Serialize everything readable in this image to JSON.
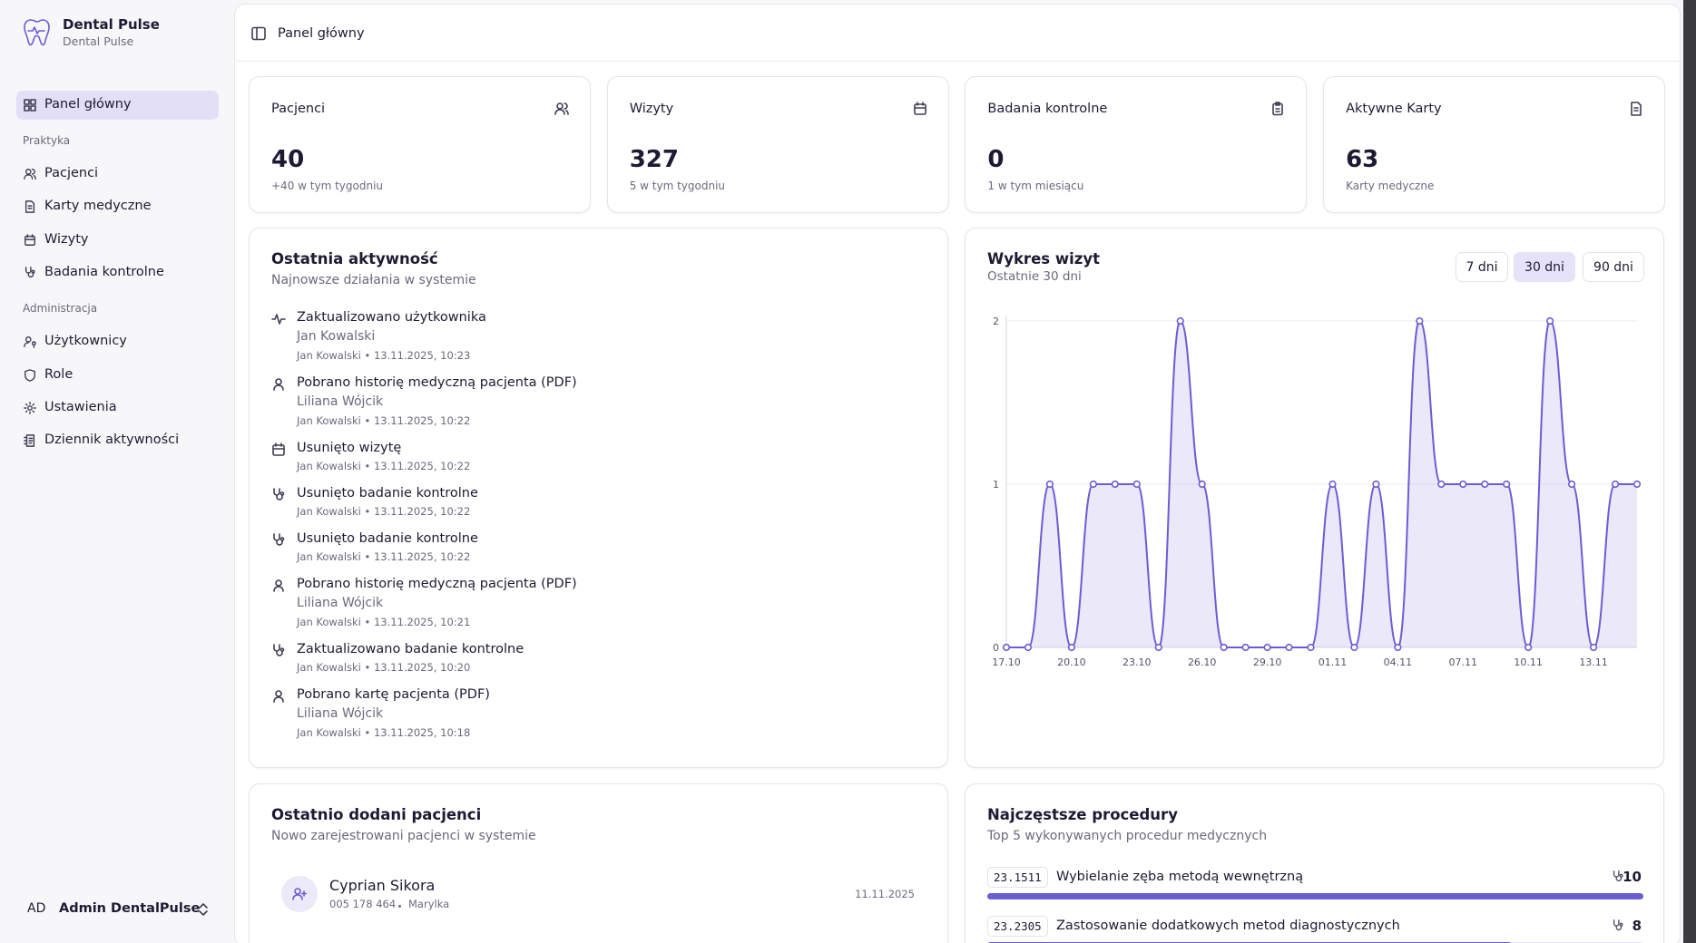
{
  "sidebar": {
    "brand": {
      "title": "Dental Pulse",
      "subtitle": "Dental Pulse"
    },
    "nav": [
      {
        "label": "Panel główny"
      }
    ],
    "sections": [
      {
        "title": "Praktyka",
        "items": [
          "Pacjenci",
          "Karty medyczne",
          "Wizyty",
          "Badania kontrolne"
        ]
      },
      {
        "title": "Administracja",
        "items": [
          "Użytkownicy",
          "Role",
          "Ustawienia",
          "Dziennik aktywności"
        ]
      }
    ],
    "user": {
      "initials": "AD",
      "name": "Admin DentalPulse"
    }
  },
  "header": {
    "breadcrumb": "Panel główny"
  },
  "stats": [
    {
      "title": "Pacjenci",
      "value": 40,
      "note": "+40 w tym tygodniu"
    },
    {
      "title": "Wizyty",
      "value": 327,
      "note": "5 w tym tygodniu"
    },
    {
      "title": "Badania kontrolne",
      "value": 0,
      "note": "1 w tym miesiącu"
    },
    {
      "title": "Aktywne Karty",
      "value": 63,
      "note": "Karty medyczne"
    }
  ],
  "activity": {
    "title": "Ostatnia aktywność",
    "subtitle": "Najnowsze działania w systemie",
    "items": [
      {
        "title": "Zaktualizowano użytkownika",
        "person": "Jan Kowalski",
        "meta": "Jan Kowalski • 13.11.2025, 10:23"
      },
      {
        "title": "Pobrano historię medyczną pacjenta (PDF)",
        "person": "Liliana Wójcik",
        "meta": "Jan Kowalski • 13.11.2025, 10:22"
      },
      {
        "title": "Usunięto wizytę",
        "meta": "Jan Kowalski • 13.11.2025, 10:22"
      },
      {
        "title": "Usunięto badanie kontrolne",
        "meta": "Jan Kowalski • 13.11.2025, 10:22"
      },
      {
        "title": "Usunięto badanie kontrolne",
        "meta": "Jan Kowalski • 13.11.2025, 10:22"
      },
      {
        "title": "Pobrano historię medyczną pacjenta (PDF)",
        "person": "Liliana Wójcik",
        "meta": "Jan Kowalski • 13.11.2025, 10:21"
      },
      {
        "title": "Zaktualizowano badanie kontrolne",
        "meta": "Jan Kowalski • 13.11.2025, 10:20"
      },
      {
        "title": "Pobrano kartę pacjenta (PDF)",
        "person": "Liliana Wójcik",
        "meta": "Jan Kowalski • 13.11.2025, 10:18"
      }
    ]
  },
  "visits_chart": {
    "type": "line",
    "title": "Wykres wizyt",
    "subtitle": "Ostatnie 30 dni",
    "ranges": [
      "7 dni",
      "30 dni",
      "90 dni"
    ],
    "active_range": 1,
    "categories": [
      "17.10",
      null,
      null,
      "20.10",
      null,
      null,
      "23.10",
      null,
      null,
      "26.10",
      null,
      null,
      "29.10",
      null,
      null,
      "01.11",
      null,
      null,
      "04.11",
      null,
      null,
      "07.11",
      null,
      null,
      "10.11",
      null,
      null,
      "13.11",
      null,
      null
    ],
    "values": [
      0,
      0,
      1,
      0,
      1,
      1,
      1,
      0,
      2,
      1,
      0,
      0,
      0,
      0,
      0,
      1,
      0,
      1,
      0,
      2,
      1,
      1,
      1,
      1,
      0,
      2,
      1,
      0,
      1,
      1
    ],
    "color": "#6c5dd3",
    "ylim": [
      0,
      2
    ],
    "yticks": [
      0,
      1,
      2
    ],
    "grid": true
  },
  "recent_patients": {
    "title": "Ostatnio dodani pacjenci",
    "subtitle": "Nowo zarejestrowani pacjenci w systemie",
    "items": [
      {
        "name": "Cyprian Sikora",
        "phone": "005 178 464",
        "city": "Marylka",
        "date": "11.11.2025"
      }
    ]
  },
  "procedures": {
    "title": "Najczęstsze procedury",
    "subtitle": "Top 5 wykonywanych procedur medycznych",
    "items": [
      {
        "code": "23.1511",
        "name": "Wybielanie zęba metodą wewnętrzną",
        "count": 10
      },
      {
        "code": "23.2305",
        "name": "Zastosowanie dodatkowych metod diagnostycznych",
        "count": 8
      }
    ]
  }
}
